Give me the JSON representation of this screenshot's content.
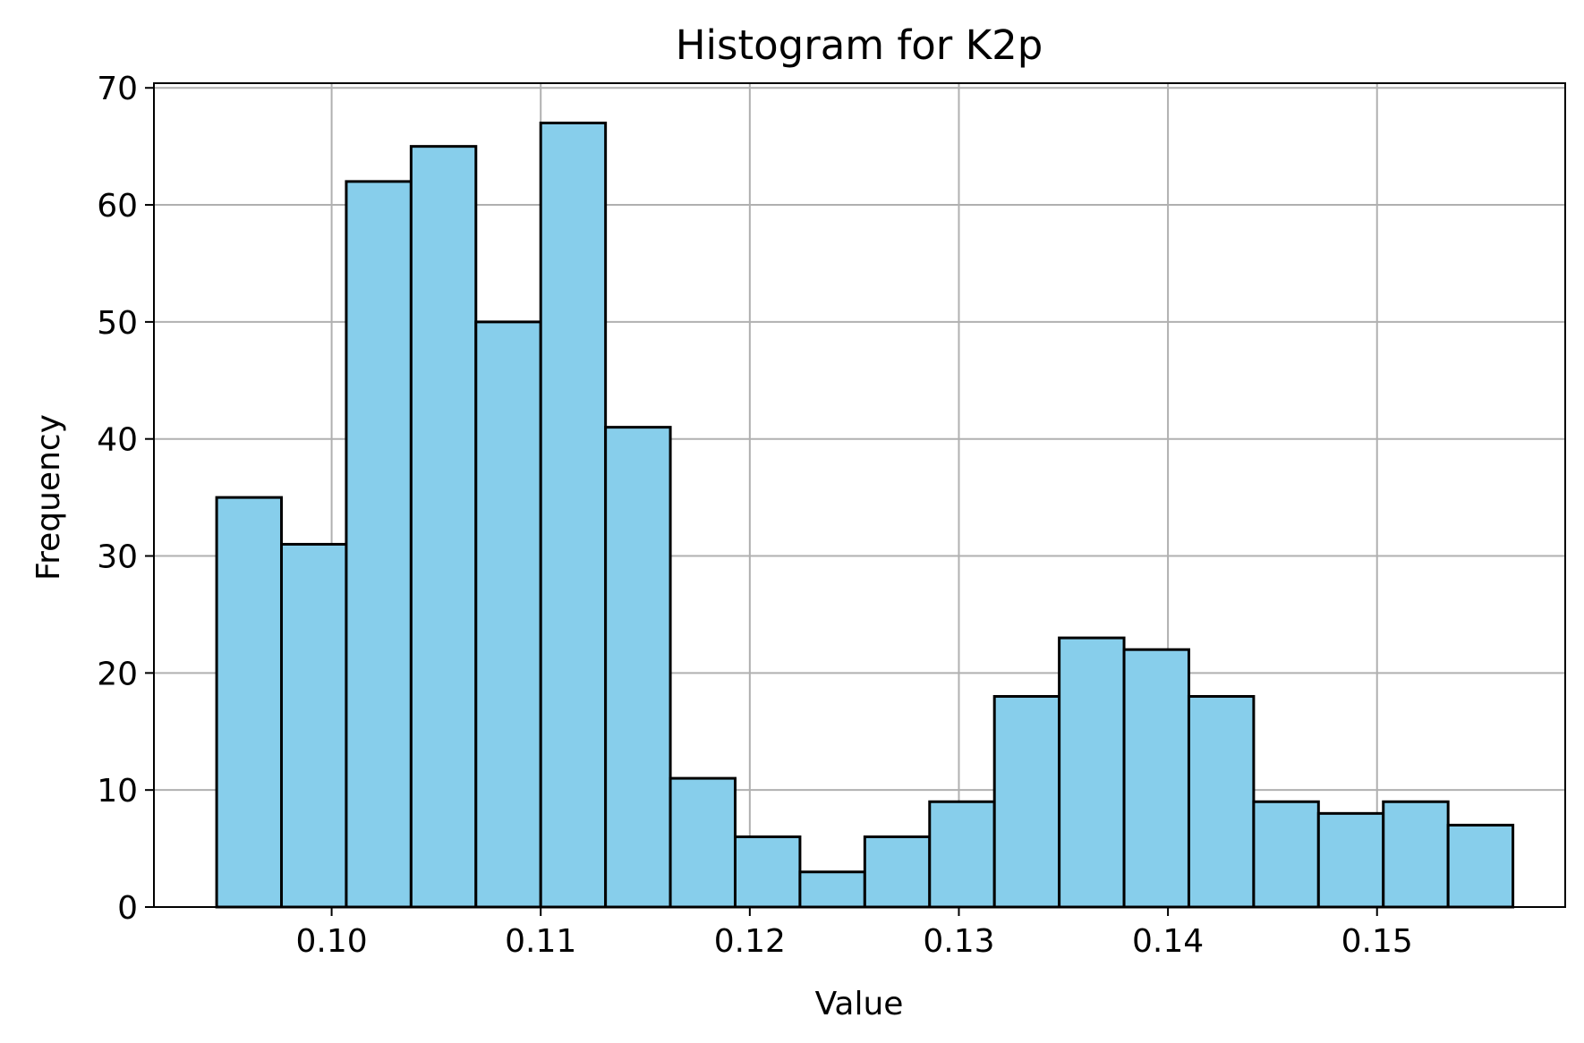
{
  "chart_data": {
    "type": "bar",
    "title": "Histogram for K2p",
    "xlabel": "Value",
    "ylabel": "Frequency",
    "bins": [
      {
        "x0": 0.0945,
        "x1": 0.0976,
        "count": 35
      },
      {
        "x0": 0.0976,
        "x1": 0.1007,
        "count": 31
      },
      {
        "x0": 0.1007,
        "x1": 0.1038,
        "count": 62
      },
      {
        "x0": 0.1038,
        "x1": 0.1069,
        "count": 65
      },
      {
        "x0": 0.1069,
        "x1": 0.11,
        "count": 50
      },
      {
        "x0": 0.11,
        "x1": 0.1131,
        "count": 67
      },
      {
        "x0": 0.1131,
        "x1": 0.1162,
        "count": 41
      },
      {
        "x0": 0.1162,
        "x1": 0.1193,
        "count": 11
      },
      {
        "x0": 0.1193,
        "x1": 0.1224,
        "count": 6
      },
      {
        "x0": 0.1224,
        "x1": 0.1255,
        "count": 3
      },
      {
        "x0": 0.1255,
        "x1": 0.1286,
        "count": 6
      },
      {
        "x0": 0.1286,
        "x1": 0.1317,
        "count": 9
      },
      {
        "x0": 0.1317,
        "x1": 0.1348,
        "count": 18
      },
      {
        "x0": 0.1348,
        "x1": 0.1379,
        "count": 23
      },
      {
        "x0": 0.1379,
        "x1": 0.141,
        "count": 22
      },
      {
        "x0": 0.141,
        "x1": 0.1441,
        "count": 18
      },
      {
        "x0": 0.1441,
        "x1": 0.1472,
        "count": 9
      },
      {
        "x0": 0.1472,
        "x1": 0.1503,
        "count": 8
      },
      {
        "x0": 0.1503,
        "x1": 0.1534,
        "count": 9
      },
      {
        "x0": 0.1534,
        "x1": 0.1565,
        "count": 7
      }
    ],
    "xlim": [
      0.0915,
      0.159
    ],
    "ylim": [
      0,
      70.4
    ],
    "xticks": [
      0.1,
      0.11,
      0.12,
      0.13,
      0.14,
      0.15
    ],
    "xtick_labels": [
      "0.10",
      "0.11",
      "0.12",
      "0.13",
      "0.14",
      "0.15"
    ],
    "yticks": [
      0,
      10,
      20,
      30,
      40,
      50,
      60,
      70
    ],
    "ytick_labels": [
      "0",
      "10",
      "20",
      "30",
      "40",
      "50",
      "60",
      "70"
    ],
    "grid": true,
    "bar_color": "#87CEEB",
    "edge_color": "#000000",
    "grid_color": "#b0b0b0"
  }
}
